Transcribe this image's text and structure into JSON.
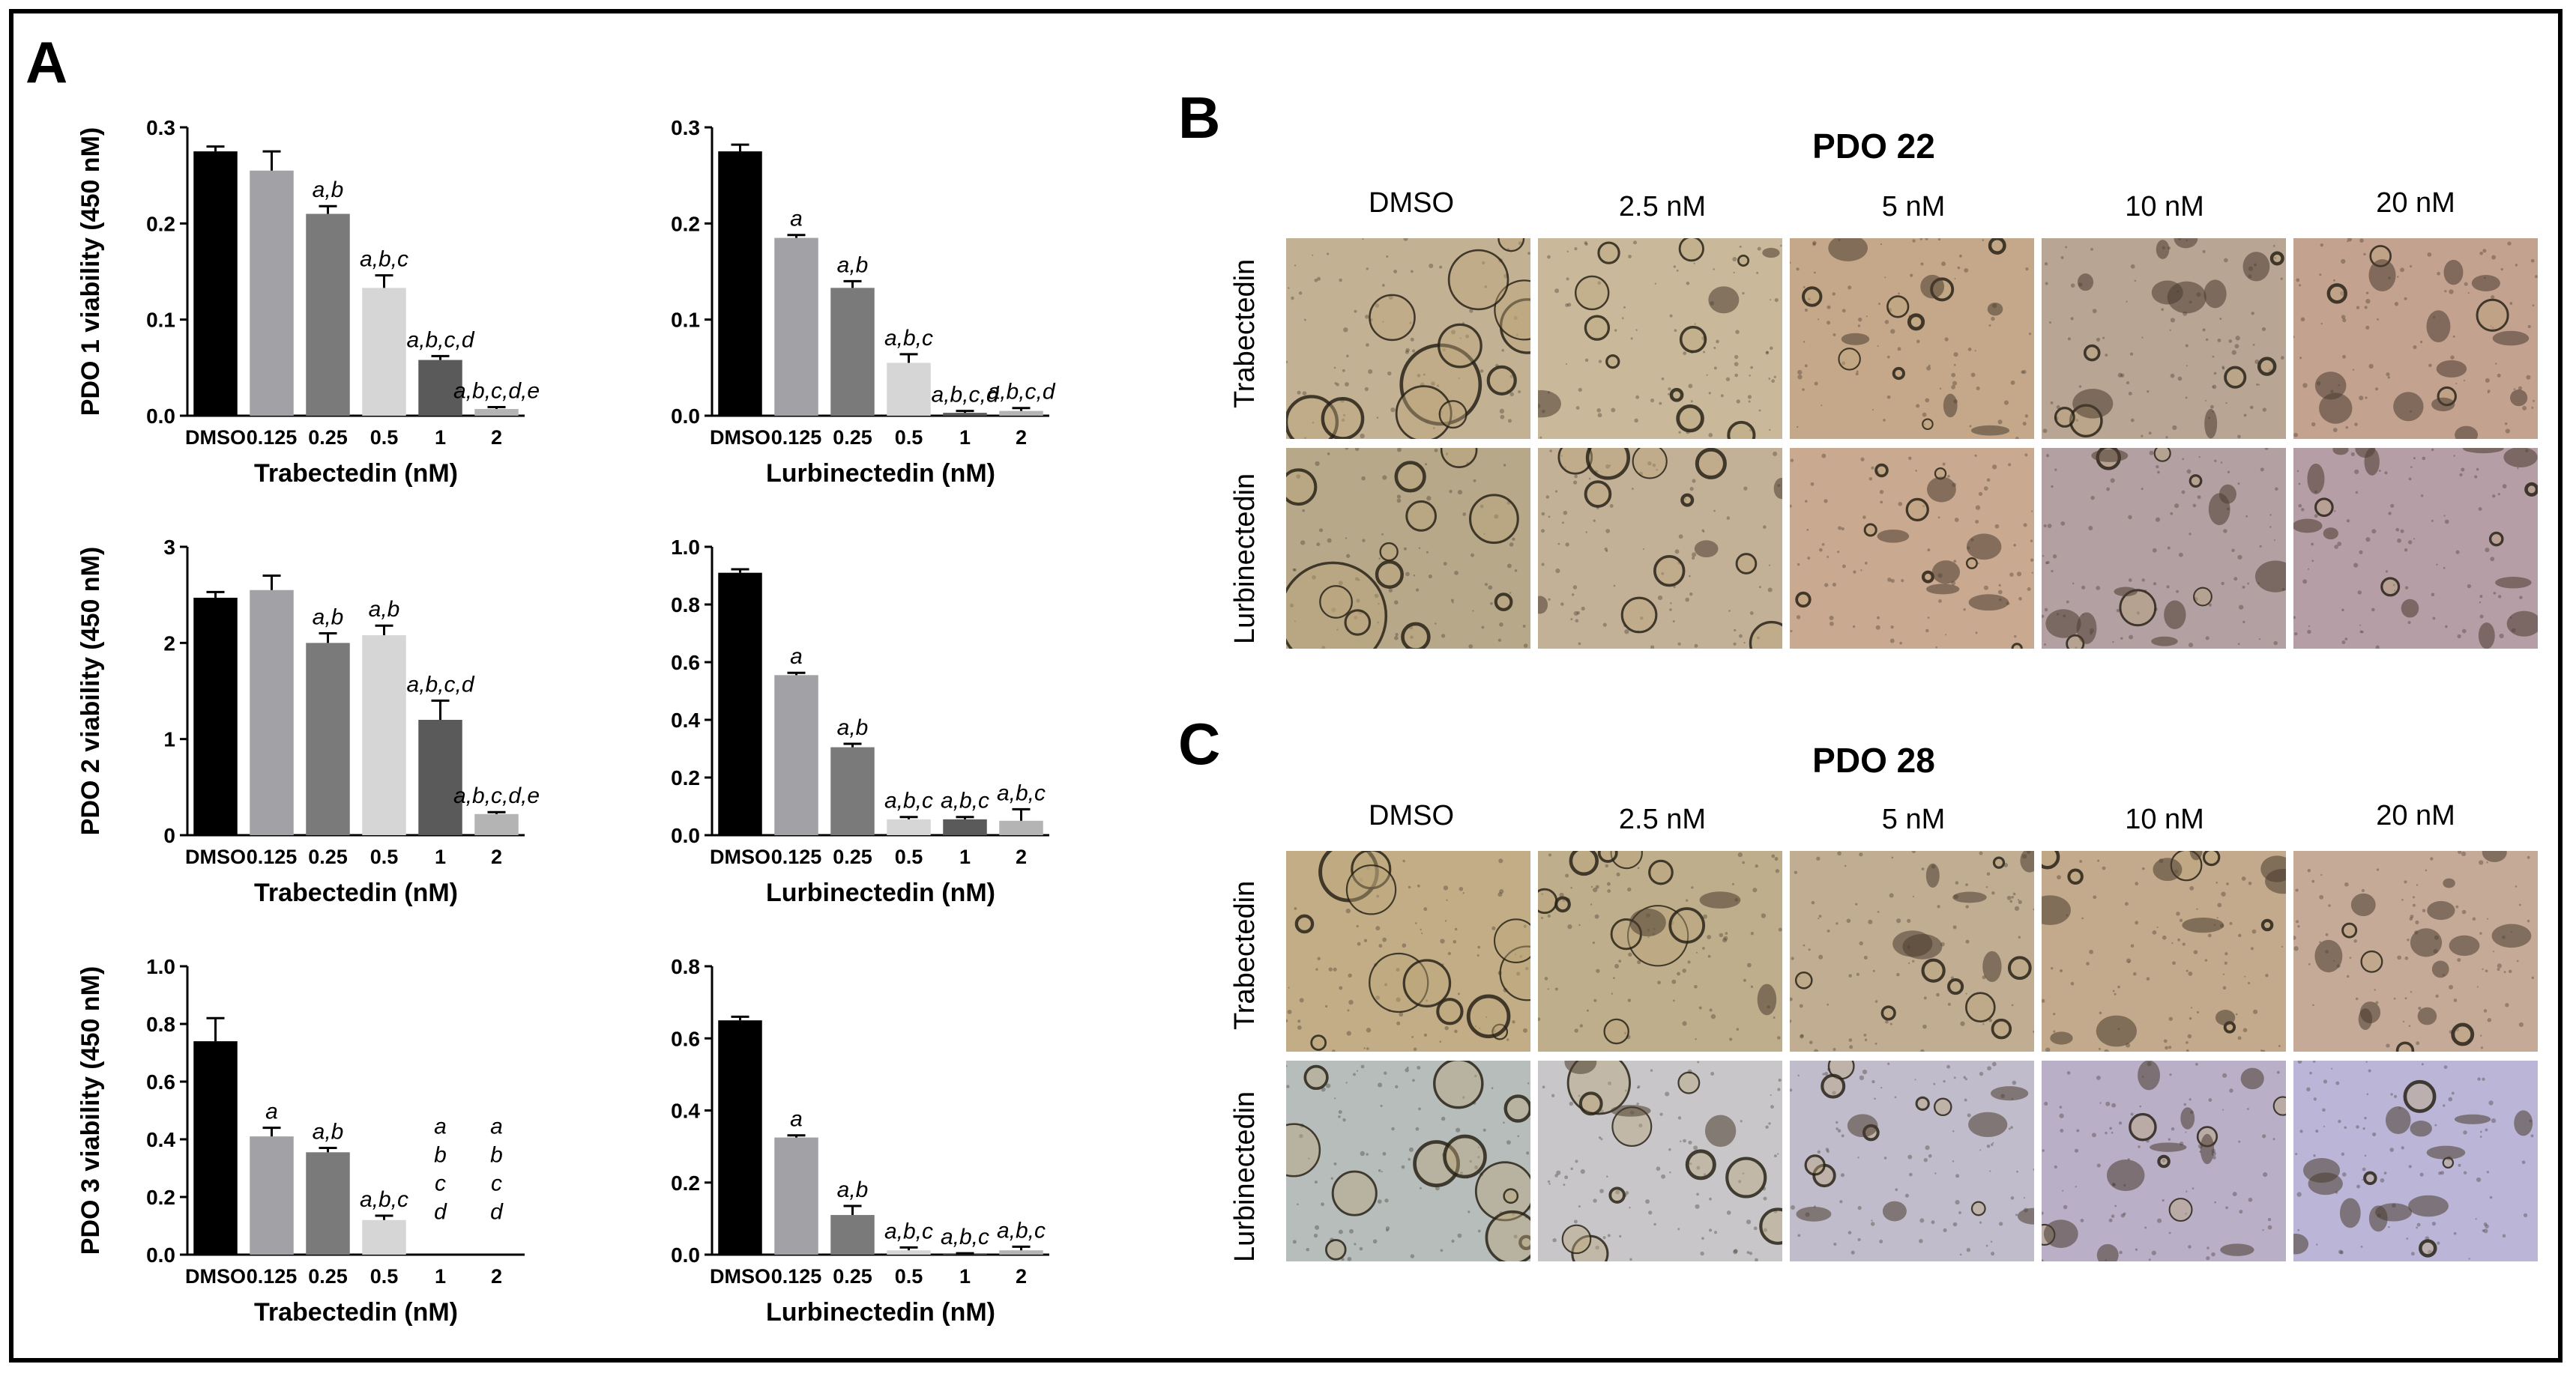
{
  "panels": {
    "a": "A",
    "b": "B",
    "c": "C"
  },
  "chart_data": [
    {
      "type": "bar",
      "ylabel": "PDO 1 viability (450 nM)",
      "xlabel": "Trabectedin (nM)",
      "categories": [
        "DMSO",
        "0.125",
        "0.25",
        "0.5",
        "1",
        "2"
      ],
      "values": [
        0.275,
        0.255,
        0.21,
        0.133,
        0.058,
        0.007
      ],
      "errors": [
        0.005,
        0.02,
        0.008,
        0.013,
        0.004,
        0.002
      ],
      "ylim": [
        0,
        0.3
      ],
      "yticks": [
        "0.0",
        "0.1",
        "0.2",
        "0.3"
      ],
      "annotations": [
        "",
        "",
        "a,b",
        "a,b,c",
        "a,b,c,d",
        "a,b,c,d,e"
      ]
    },
    {
      "type": "bar",
      "ylabel": "",
      "xlabel": "Lurbinectedin (nM)",
      "categories": [
        "DMSO",
        "0.125",
        "0.25",
        "0.5",
        "1",
        "2"
      ],
      "values": [
        0.275,
        0.185,
        0.133,
        0.055,
        0.003,
        0.005
      ],
      "errors": [
        0.007,
        0.003,
        0.007,
        0.009,
        0.002,
        0.003
      ],
      "ylim": [
        0,
        0.3
      ],
      "yticks": [
        "0.0",
        "0.1",
        "0.2",
        "0.3"
      ],
      "annotations": [
        "",
        "a",
        "a,b",
        "a,b,c",
        "a,b,c,d",
        "a,b,c,d"
      ]
    },
    {
      "type": "bar",
      "ylabel": "PDO 2 viability (450 nM)",
      "xlabel": "Trabectedin (nM)",
      "categories": [
        "DMSO",
        "0.125",
        "0.25",
        "0.5",
        "1",
        "2"
      ],
      "values": [
        2.47,
        2.55,
        2.0,
        2.08,
        1.2,
        0.22
      ],
      "errors": [
        0.06,
        0.15,
        0.1,
        0.1,
        0.2,
        0.02
      ],
      "ylim": [
        0,
        3
      ],
      "yticks": [
        "0",
        "1",
        "2",
        "3"
      ],
      "annotations": [
        "",
        "",
        "a,b",
        "a,b",
        "a,b,c,d",
        "a,b,c,d,e"
      ]
    },
    {
      "type": "bar",
      "ylabel": "",
      "xlabel": "Lurbinectedin (nM)",
      "categories": [
        "DMSO",
        "0.125",
        "0.25",
        "0.5",
        "1",
        "2"
      ],
      "values": [
        0.91,
        0.555,
        0.305,
        0.055,
        0.055,
        0.05
      ],
      "errors": [
        0.012,
        0.008,
        0.012,
        0.008,
        0.008,
        0.04
      ],
      "ylim": [
        0,
        1.0
      ],
      "yticks": [
        "0.0",
        "0.2",
        "0.4",
        "0.6",
        "0.8",
        "1.0"
      ],
      "annotations": [
        "",
        "a",
        "a,b",
        "a,b,c",
        "a,b,c",
        "a,b,c"
      ]
    },
    {
      "type": "bar",
      "ylabel": "PDO 3 viability (450 nM)",
      "xlabel": "Trabectedin (nM)",
      "categories": [
        "DMSO",
        "0.125",
        "0.25",
        "0.5",
        "1",
        "2"
      ],
      "values": [
        0.74,
        0.41,
        0.355,
        0.12,
        0,
        0
      ],
      "errors": [
        0.08,
        0.03,
        0.015,
        0.015,
        0,
        0
      ],
      "ylim": [
        0,
        1.0
      ],
      "yticks": [
        "0.0",
        "0.2",
        "0.4",
        "0.6",
        "0.8",
        "1.0"
      ],
      "annotations": [
        "",
        "a",
        "a,b",
        "a,b,c",
        "a\nb\nc\nd",
        "a\nb\nc\nd"
      ]
    },
    {
      "type": "bar",
      "ylabel": "",
      "xlabel": "Lurbinectedin (nM)",
      "categories": [
        "DMSO",
        "0.125",
        "0.25",
        "0.5",
        "1",
        "2"
      ],
      "values": [
        0.65,
        0.325,
        0.11,
        0.012,
        0.002,
        0.012
      ],
      "errors": [
        0.01,
        0.006,
        0.025,
        0.008,
        0.002,
        0.01
      ],
      "ylim": [
        0,
        0.8
      ],
      "yticks": [
        "0.0",
        "0.2",
        "0.4",
        "0.6",
        "0.8"
      ],
      "annotations": [
        "",
        "a",
        "a,b",
        "a,b,c",
        "a,b,c",
        "a,b,c"
      ]
    }
  ],
  "bar_colors": [
    "#000000",
    "#a2a2a6",
    "#7a7a7a",
    "#d6d6d6",
    "#5a5a5a",
    "#b4b4b4"
  ],
  "photos": {
    "columns": [
      "DMSO",
      "2.5 nM",
      "5 nM",
      "10 nM",
      "20 nM"
    ],
    "rows": [
      "Trabectedin",
      "Lurbinectedin"
    ],
    "b_title": "PDO 22",
    "c_title": "PDO 28"
  }
}
